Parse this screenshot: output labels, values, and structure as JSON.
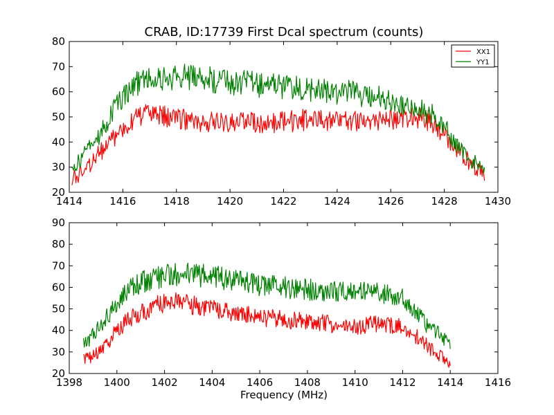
{
  "chart_data": [
    {
      "type": "line",
      "title": "CRAB, ID:17739 First Dcal spectrum (counts)",
      "xlabel": "",
      "ylabel": "",
      "xlim": [
        1414,
        1430
      ],
      "ylim": [
        20,
        80
      ],
      "xticks": [
        1414,
        1416,
        1418,
        1420,
        1422,
        1424,
        1426,
        1428,
        1430
      ],
      "yticks": [
        20,
        30,
        40,
        50,
        60,
        70,
        80
      ],
      "legend": "top-right",
      "grid": false,
      "series": [
        {
          "name": "XX1",
          "color": "#ff0000",
          "x": [
            1414.1,
            1414.5,
            1415.0,
            1415.5,
            1416.0,
            1416.5,
            1417.0,
            1417.5,
            1418.0,
            1419.0,
            1420.0,
            1421.0,
            1422.0,
            1423.0,
            1424.0,
            1425.0,
            1426.0,
            1427.0,
            1427.5,
            1428.0,
            1428.5,
            1429.0,
            1429.5
          ],
          "y": [
            25,
            28,
            34,
            40,
            46,
            50,
            51,
            50,
            49,
            48,
            47,
            48,
            48,
            49,
            48,
            48,
            49,
            50,
            48,
            43,
            37,
            31,
            27
          ]
        },
        {
          "name": "YY1",
          "color": "#008000",
          "x": [
            1414.1,
            1414.5,
            1415.0,
            1415.5,
            1416.0,
            1416.5,
            1417.0,
            1417.5,
            1418.0,
            1419.0,
            1420.0,
            1421.0,
            1422.0,
            1423.0,
            1424.0,
            1425.0,
            1426.0,
            1427.0,
            1427.5,
            1428.0,
            1428.5,
            1429.0,
            1429.5
          ],
          "y": [
            29,
            34,
            41,
            50,
            58,
            63,
            65,
            66,
            66,
            65,
            64,
            63,
            62,
            61,
            60,
            59,
            57,
            54,
            51,
            46,
            39,
            33,
            29
          ]
        }
      ]
    },
    {
      "type": "line",
      "title": "",
      "xlabel": "Frequency (MHz)",
      "ylabel": "",
      "xlim": [
        1398,
        1416
      ],
      "ylim": [
        20,
        90
      ],
      "xticks": [
        1398,
        1400,
        1402,
        1404,
        1406,
        1408,
        1410,
        1412,
        1414,
        1416
      ],
      "yticks": [
        20,
        30,
        40,
        50,
        60,
        70,
        80,
        90
      ],
      "legend": "none",
      "grid": false,
      "series": [
        {
          "name": "",
          "color": "#ff0000",
          "x": [
            1398.6,
            1399.0,
            1399.5,
            1400.0,
            1400.5,
            1401.0,
            1401.5,
            1402.0,
            1402.5,
            1403.0,
            1404.0,
            1405.0,
            1406.0,
            1407.0,
            1408.0,
            1409.0,
            1410.0,
            1411.0,
            1412.0,
            1412.5,
            1413.0,
            1413.5,
            1414.0
          ],
          "y": [
            26,
            28,
            33,
            40,
            45,
            48,
            51,
            53,
            54,
            52,
            50,
            48,
            46,
            45,
            44,
            43,
            42,
            43,
            42,
            38,
            33,
            29,
            25
          ]
        },
        {
          "name": "",
          "color": "#008000",
          "x": [
            1398.6,
            1399.0,
            1399.5,
            1400.0,
            1400.5,
            1401.0,
            1401.5,
            1402.0,
            1402.5,
            1403.0,
            1404.0,
            1405.0,
            1406.0,
            1407.0,
            1408.0,
            1409.0,
            1410.0,
            1411.0,
            1412.0,
            1412.5,
            1413.0,
            1413.5,
            1414.0
          ],
          "y": [
            33,
            38,
            45,
            53,
            59,
            62,
            64,
            65,
            66,
            66,
            65,
            63,
            61,
            60,
            59,
            58,
            58,
            58,
            55,
            50,
            43,
            38,
            33
          ]
        }
      ]
    }
  ]
}
